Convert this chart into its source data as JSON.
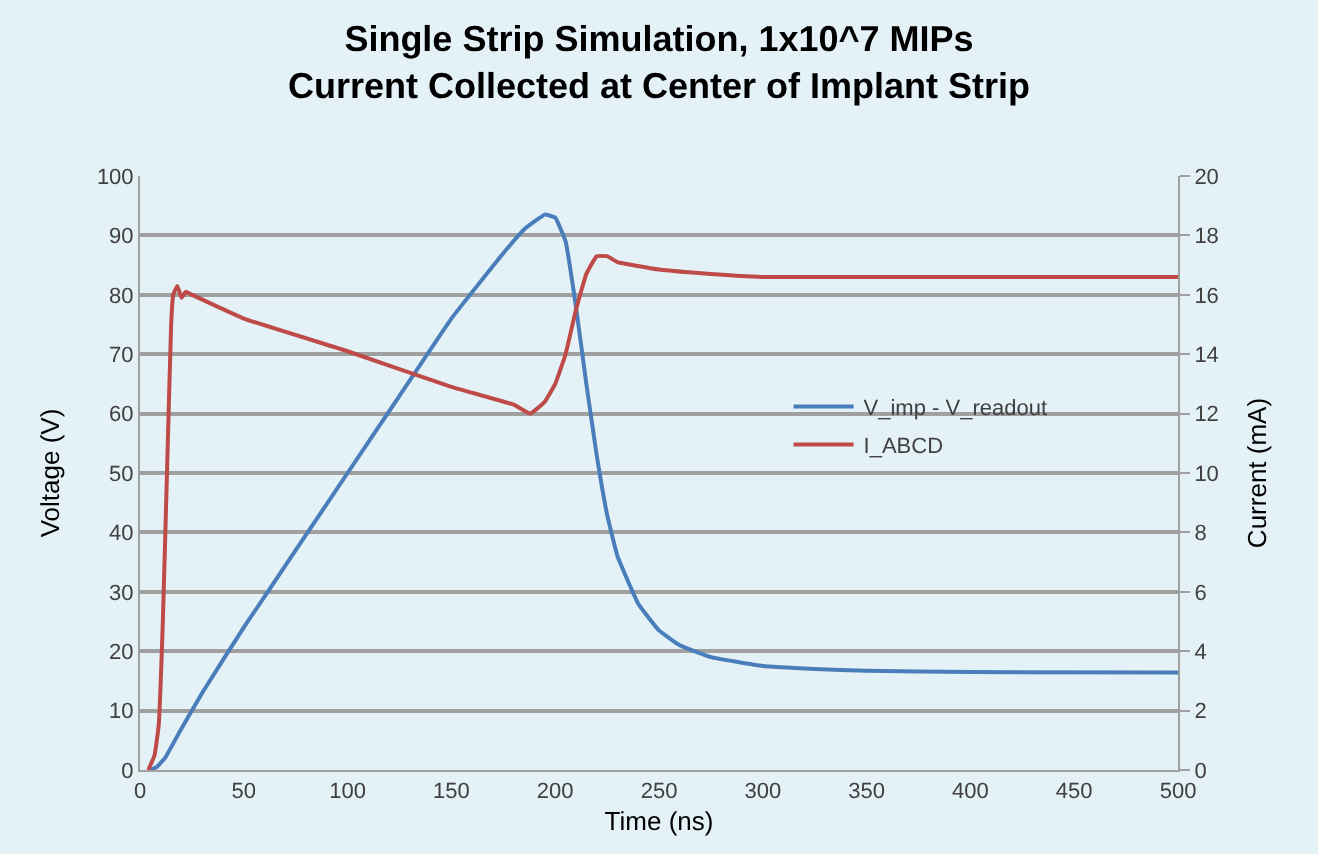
{
  "chart_data": {
    "type": "line",
    "title": "Single Strip Simulation, 1x10^7 MIPs\nCurrent Collected at Center of Implant Strip",
    "xlabel": "Time (ns)",
    "ylabel": "Voltage (V)",
    "y2label": "Current (mA)",
    "xlim": [
      0,
      500
    ],
    "xticks": [
      0,
      50,
      100,
      150,
      200,
      250,
      300,
      350,
      400,
      450,
      500
    ],
    "ylim": [
      0,
      100
    ],
    "yticks": [
      0,
      10,
      20,
      30,
      40,
      50,
      60,
      70,
      80,
      90,
      100
    ],
    "y2lim": [
      0,
      20
    ],
    "y2ticks": [
      0,
      2,
      4,
      6,
      8,
      10,
      12,
      14,
      16,
      18,
      20
    ],
    "grid": "y",
    "legend": "right",
    "marker": "none",
    "line_style": "solid",
    "series": [
      {
        "name": "V_imp - V_readout",
        "color": "#4a7ebb",
        "x": [
          5,
          8,
          12,
          20,
          30,
          50,
          75,
          100,
          125,
          150,
          175,
          185,
          195,
          200,
          205,
          210,
          215,
          220,
          225,
          230,
          240,
          250,
          260,
          275,
          300,
          325,
          350,
          400,
          500
        ],
        "values": [
          0,
          0.5,
          2,
          7,
          13,
          24,
          37,
          50,
          63,
          76,
          87,
          91,
          93.5,
          93,
          89,
          78,
          65,
          53,
          43,
          36,
          28,
          23.5,
          21,
          19,
          17.5,
          17,
          16.7,
          16.5,
          16.4
        ]
      },
      {
        "name": "I_ABCD",
        "color": "#be4b48",
        "axis": "y2",
        "x": [
          4,
          7,
          9,
          11,
          13,
          15,
          16,
          18,
          20,
          22,
          25,
          50,
          100,
          150,
          180,
          188,
          195,
          200,
          205,
          210,
          215,
          220,
          225,
          230,
          250,
          275,
          300,
          500
        ],
        "values": [
          0,
          0.5,
          1.5,
          5,
          10,
          15,
          16,
          16.3,
          15.9,
          16.1,
          16,
          15.2,
          14.1,
          12.9,
          12.3,
          12,
          12.4,
          13,
          14,
          15.5,
          16.7,
          17.3,
          17.3,
          17.1,
          16.85,
          16.7,
          16.6,
          16.6
        ]
      }
    ]
  }
}
